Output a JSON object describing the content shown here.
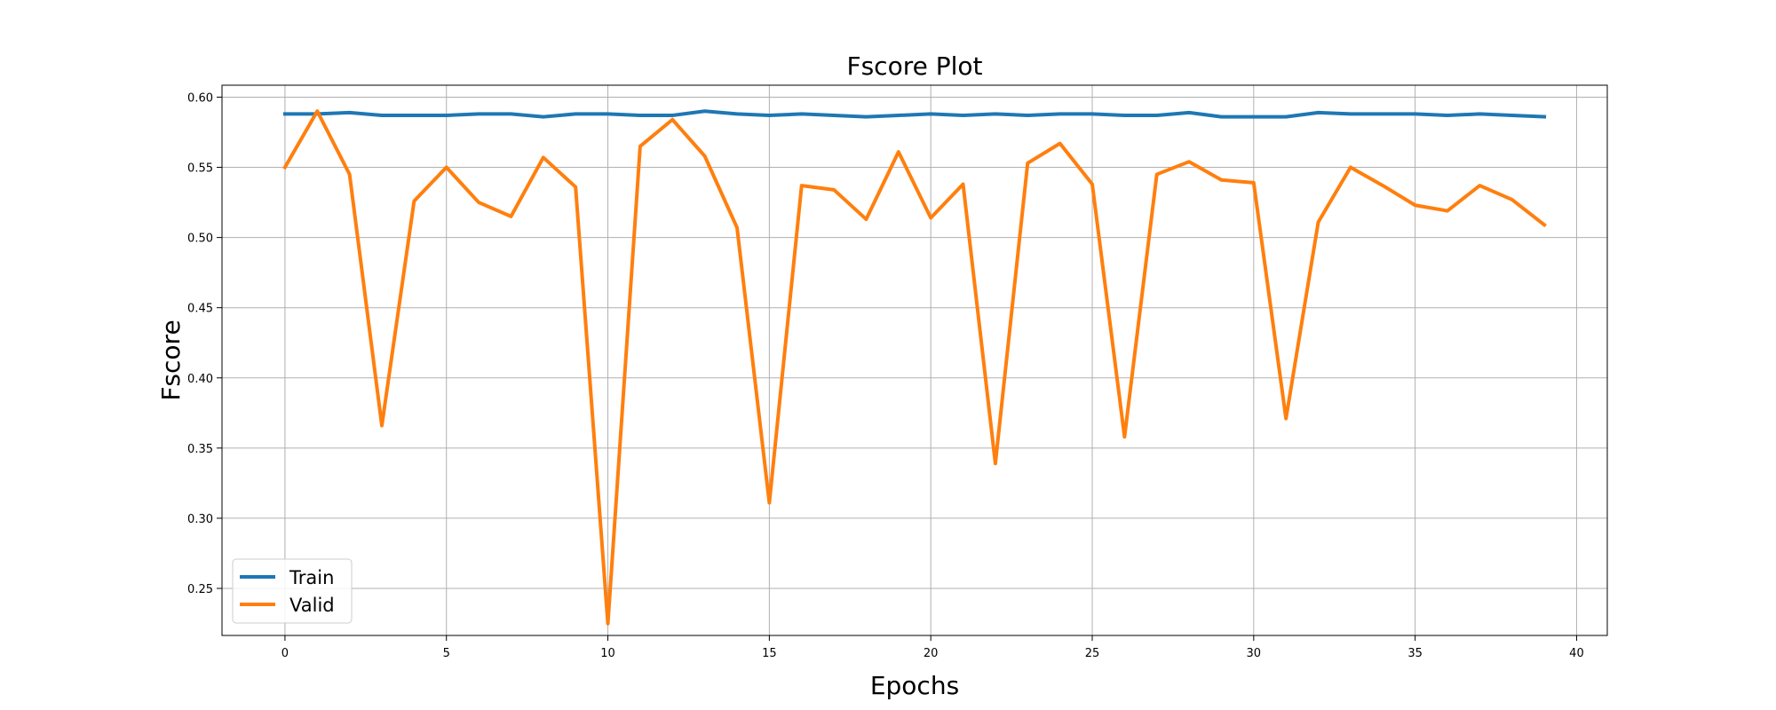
{
  "chart_data": {
    "type": "line",
    "title": "Fscore Plot",
    "xlabel": "Epochs",
    "ylabel": "Fscore",
    "xlim": [
      -1.95,
      40.95
    ],
    "ylim": [
      0.2165,
      0.6085
    ],
    "xticks": [
      0,
      5,
      10,
      15,
      20,
      25,
      30,
      35,
      40
    ],
    "yticks": [
      0.25,
      0.3,
      0.35,
      0.4,
      0.45,
      0.5,
      0.55,
      0.6
    ],
    "ytick_labels": [
      "0.25",
      "0.30",
      "0.35",
      "0.40",
      "0.45",
      "0.50",
      "0.55",
      "0.60"
    ],
    "grid": true,
    "legend_position": "lower-left",
    "x": [
      0,
      1,
      2,
      3,
      4,
      5,
      6,
      7,
      8,
      9,
      10,
      11,
      12,
      13,
      14,
      15,
      16,
      17,
      18,
      19,
      20,
      21,
      22,
      23,
      24,
      25,
      26,
      27,
      28,
      29,
      30,
      31,
      32,
      33,
      34,
      35,
      36,
      37,
      38,
      39
    ],
    "series": [
      {
        "name": "Train",
        "color": "#1f77b4",
        "values": [
          0.588,
          0.588,
          0.589,
          0.587,
          0.587,
          0.587,
          0.588,
          0.588,
          0.586,
          0.588,
          0.588,
          0.587,
          0.587,
          0.59,
          0.588,
          0.587,
          0.588,
          0.587,
          0.586,
          0.587,
          0.588,
          0.587,
          0.588,
          0.587,
          0.588,
          0.588,
          0.587,
          0.587,
          0.589,
          0.586,
          0.586,
          0.586,
          0.589,
          0.588,
          0.588,
          0.588,
          0.587,
          0.588,
          0.587,
          0.586
        ]
      },
      {
        "name": "Valid",
        "color": "#ff7f0e",
        "values": [
          0.55,
          0.59,
          0.545,
          0.366,
          0.526,
          0.55,
          0.525,
          0.515,
          0.557,
          0.536,
          0.225,
          0.565,
          0.584,
          0.558,
          0.507,
          0.311,
          0.537,
          0.534,
          0.513,
          0.561,
          0.514,
          0.538,
          0.339,
          0.553,
          0.567,
          0.538,
          0.358,
          0.545,
          0.554,
          0.541,
          0.539,
          0.371,
          0.511,
          0.55,
          0.537,
          0.523,
          0.519,
          0.537,
          0.527,
          0.509
        ]
      }
    ]
  }
}
